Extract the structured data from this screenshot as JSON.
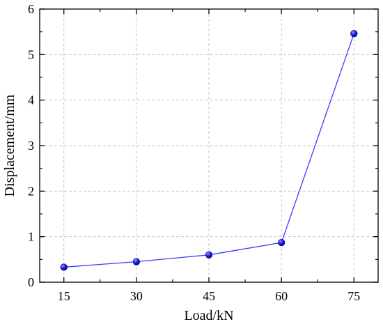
{
  "chart_data": {
    "type": "line",
    "xlabel": "Load/kN",
    "ylabel": "Displacement/mm",
    "x": [
      15,
      30,
      45,
      60,
      75
    ],
    "series": [
      {
        "values": [
          0.33,
          0.45,
          0.6,
          0.87,
          5.46
        ]
      }
    ],
    "xlim": [
      10,
      80
    ],
    "ylim": [
      0,
      6
    ],
    "x_ticks": [
      15,
      30,
      45,
      60,
      75
    ],
    "y_ticks": [
      0,
      1,
      2,
      3,
      4,
      5,
      6
    ],
    "grid": true,
    "colors": {
      "line": "#3a3aff",
      "marker": "#1010d0",
      "grid": "#c8c8c8",
      "axis": "#000000"
    }
  }
}
